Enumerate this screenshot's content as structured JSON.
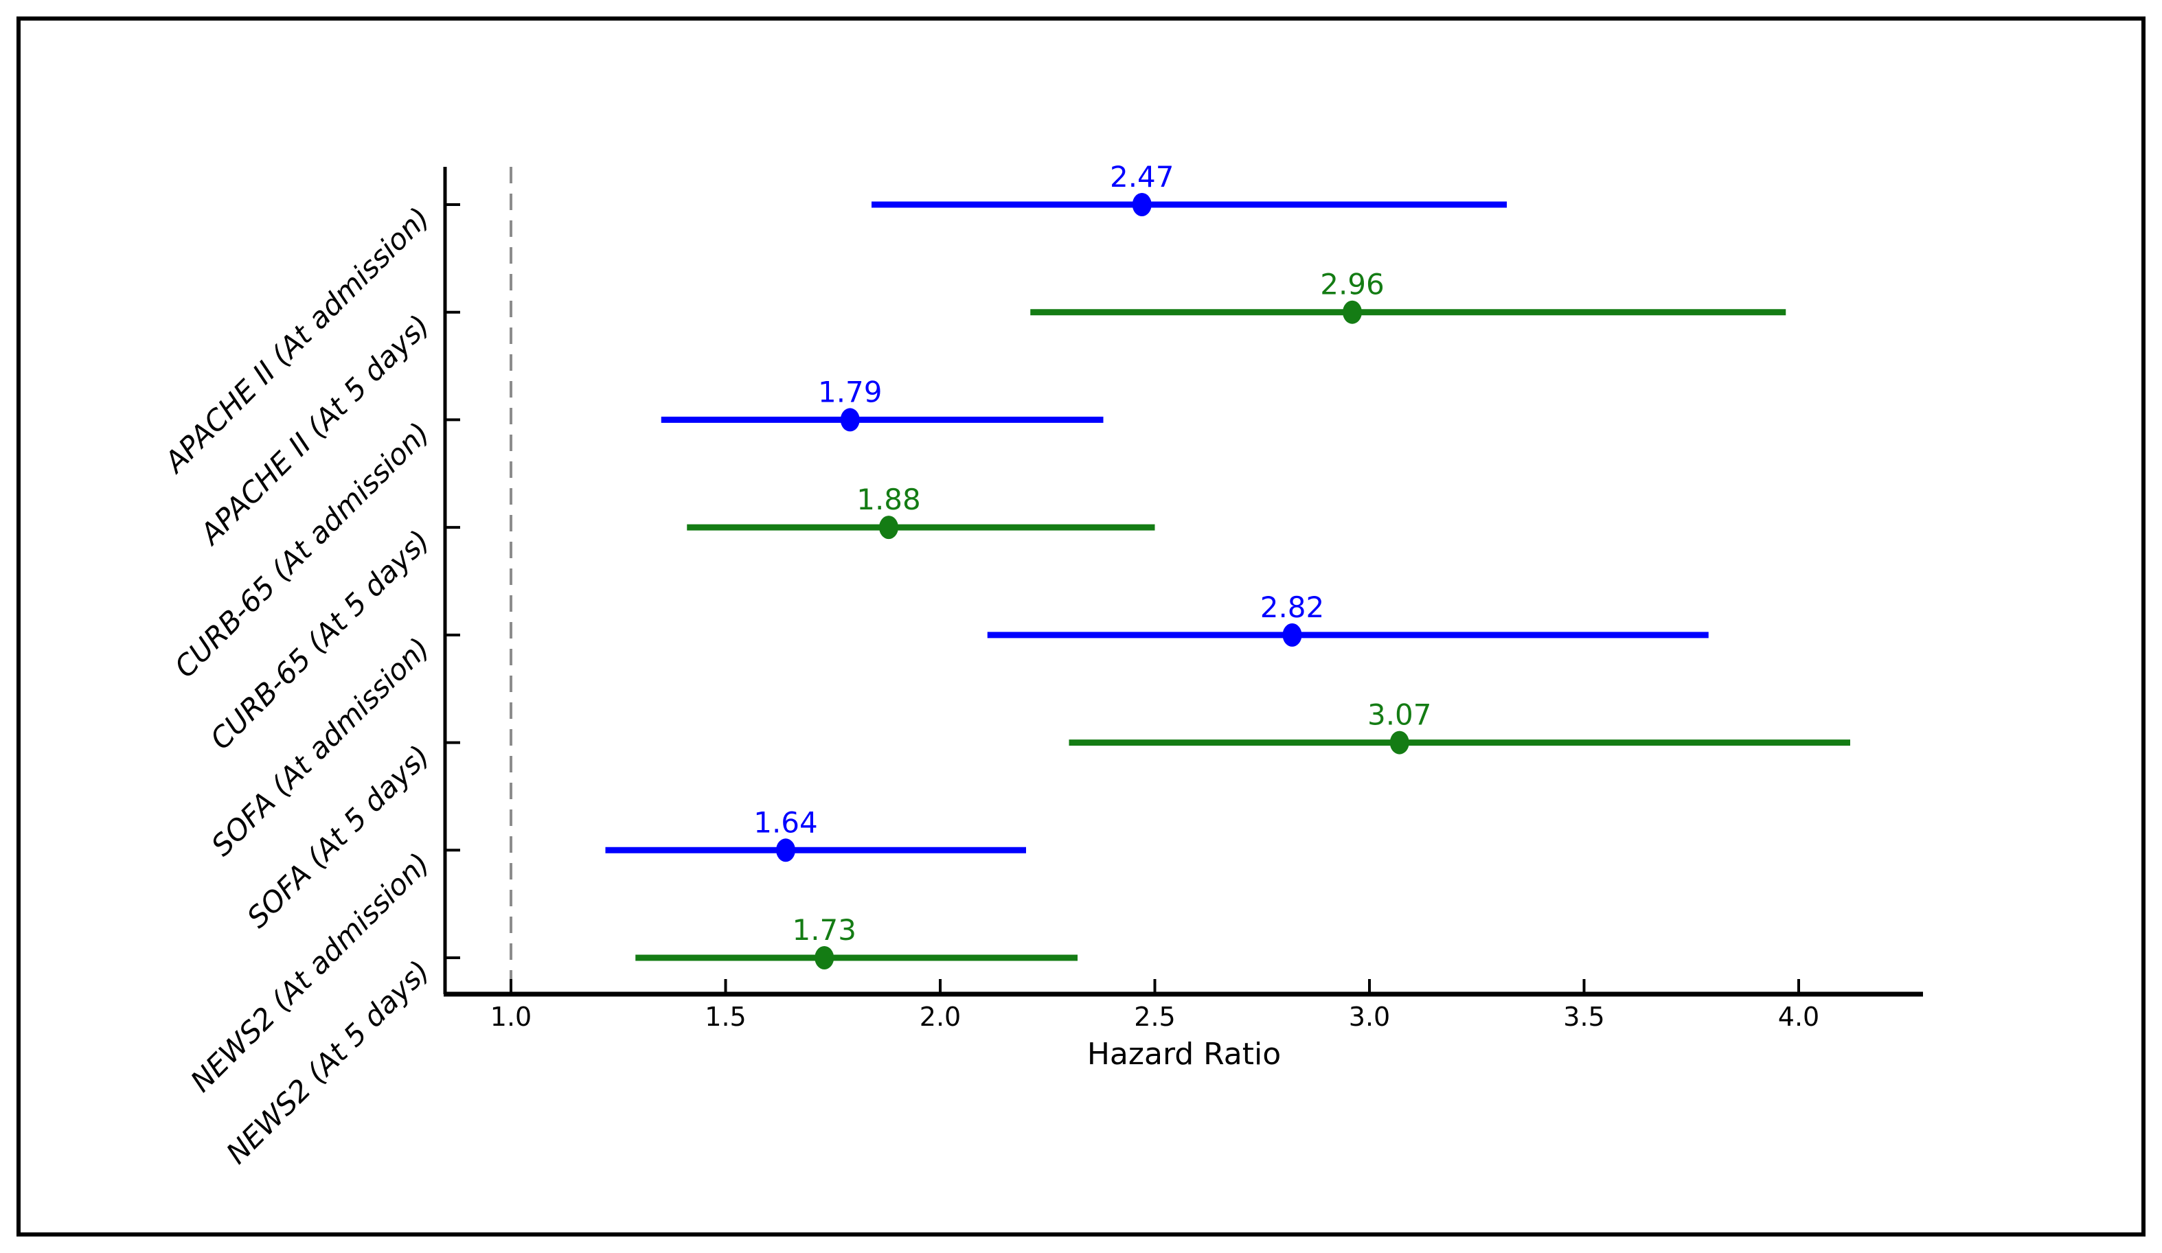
{
  "figure": {
    "background": "#ffffff",
    "border_color": "#000000"
  },
  "chart_data": {
    "type": "scatter",
    "subtype": "forest-plot",
    "title": "",
    "xlabel": "Hazard Ratio",
    "ylabel": "",
    "grid": false,
    "legend": "none",
    "xlim": [
      0.85,
      4.29
    ],
    "xtick_labels": [
      "1.0",
      "1.5",
      "2.0",
      "2.5",
      "3.0",
      "3.5",
      "4.0"
    ],
    "xtick_values": [
      1.0,
      1.5,
      2.0,
      2.5,
      3.0,
      3.5,
      4.0
    ],
    "reference_line_x": 1.0,
    "categories": [
      "APACHE II (At admission)",
      "APACHE II (At 5 days)",
      "CURB-65 (At admission)",
      "CURB-65 (At 5 days)",
      "SOFA (At admission)",
      "SOFA (At 5 days)",
      "NEWS2 (At admission)",
      "NEWS2 (At 5 days)"
    ],
    "rows": [
      {
        "label": "APACHE II (At admission)",
        "hr": 2.47,
        "hr_label": "2.47",
        "ci_low": 1.84,
        "ci_high": 3.32,
        "color": "#0000ff"
      },
      {
        "label": "APACHE II (At 5 days)",
        "hr": 2.96,
        "hr_label": "2.96",
        "ci_low": 2.21,
        "ci_high": 3.97,
        "color": "#147c14"
      },
      {
        "label": "CURB-65 (At admission)",
        "hr": 1.79,
        "hr_label": "1.79",
        "ci_low": 1.35,
        "ci_high": 2.38,
        "color": "#0000ff"
      },
      {
        "label": "CURB-65 (At 5 days)",
        "hr": 1.88,
        "hr_label": "1.88",
        "ci_low": 1.41,
        "ci_high": 2.5,
        "color": "#147c14"
      },
      {
        "label": "SOFA (At admission)",
        "hr": 2.82,
        "hr_label": "2.82",
        "ci_low": 2.11,
        "ci_high": 3.79,
        "color": "#0000ff"
      },
      {
        "label": "SOFA (At 5 days)",
        "hr": 3.07,
        "hr_label": "3.07",
        "ci_low": 2.3,
        "ci_high": 4.12,
        "color": "#147c14"
      },
      {
        "label": "NEWS2 (At admission)",
        "hr": 1.64,
        "hr_label": "1.64",
        "ci_low": 1.22,
        "ci_high": 2.2,
        "color": "#0000ff"
      },
      {
        "label": "NEWS2 (At 5 days)",
        "hr": 1.73,
        "hr_label": "1.73",
        "ci_low": 1.29,
        "ci_high": 2.32,
        "color": "#147c14"
      }
    ],
    "colors": {
      "at_admission_series": "#0000ff",
      "at_5_days_series": "#147c14",
      "reference_line": "#8c8c8c",
      "axis": "#000000",
      "tick_label": "#000000"
    }
  }
}
